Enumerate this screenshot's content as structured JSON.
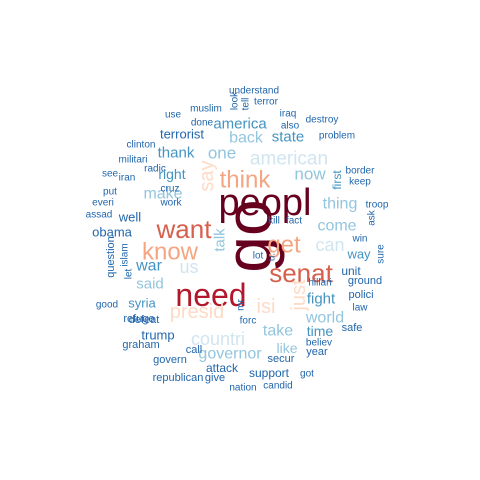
{
  "palette": {
    "darkest": "#67001f",
    "dark_red": "#b2182b",
    "salmon": "#d6604d",
    "peach": "#f4a582",
    "light_peach": "#fddbc7",
    "pale_blue": "#d1e5f0",
    "light_blue": "#92c5de",
    "mid_blue": "#4393c3",
    "dark_blue": "#2166ac",
    "navy": "#053061"
  },
  "words": [
    {
      "text": "go",
      "color": "#67001f",
      "vertical": true
    },
    {
      "text": "peopl",
      "color": "#67001f",
      "vertical": false
    },
    {
      "text": "need",
      "color": "#b2182b",
      "vertical": false
    },
    {
      "text": "want",
      "color": "#d6604d",
      "vertical": false
    },
    {
      "text": "senat",
      "color": "#d6604d",
      "vertical": false
    },
    {
      "text": "think",
      "color": "#f4a582",
      "vertical": false
    },
    {
      "text": "get",
      "color": "#f4a582",
      "vertical": false
    },
    {
      "text": "know",
      "color": "#f4a582",
      "vertical": false
    },
    {
      "text": "presid",
      "color": "#fddbc7",
      "vertical": false
    },
    {
      "text": "isi",
      "color": "#fddbc7",
      "vertical": false
    },
    {
      "text": "just",
      "color": "#fddbc7",
      "vertical": true
    },
    {
      "text": "say",
      "color": "#fddbc7",
      "vertical": true
    },
    {
      "text": "american",
      "color": "#d1e5f0",
      "vertical": false
    },
    {
      "text": "countri",
      "color": "#d1e5f0",
      "vertical": false
    },
    {
      "text": "can",
      "color": "#d1e5f0",
      "vertical": false
    },
    {
      "text": "us",
      "color": "#d1e5f0",
      "vertical": false
    },
    {
      "text": "one",
      "color": "#92c5de",
      "vertical": false
    },
    {
      "text": "now",
      "color": "#92c5de",
      "vertical": false
    },
    {
      "text": "make",
      "color": "#92c5de",
      "vertical": false
    },
    {
      "text": "thing",
      "color": "#92c5de",
      "vertical": false
    },
    {
      "text": "come",
      "color": "#92c5de",
      "vertical": false
    },
    {
      "text": "talk",
      "color": "#92c5de",
      "vertical": true
    },
    {
      "text": "back",
      "color": "#92c5de",
      "vertical": false
    },
    {
      "text": "said",
      "color": "#92c5de",
      "vertical": false
    },
    {
      "text": "world",
      "color": "#92c5de",
      "vertical": false
    },
    {
      "text": "take",
      "color": "#92c5de",
      "vertical": false
    },
    {
      "text": "governor",
      "color": "#92c5de",
      "vertical": false
    },
    {
      "text": "like",
      "color": "#92c5de",
      "vertical": false
    },
    {
      "text": "america",
      "color": "#4393c3",
      "vertical": false
    },
    {
      "text": "state",
      "color": "#4393c3",
      "vertical": false
    },
    {
      "text": "thank",
      "color": "#4393c3",
      "vertical": false
    },
    {
      "text": "right",
      "color": "#4393c3",
      "vertical": false
    },
    {
      "text": "war",
      "color": "#4393c3",
      "vertical": false
    },
    {
      "text": "fight",
      "color": "#4393c3",
      "vertical": false
    },
    {
      "text": "time",
      "color": "#4393c3",
      "vertical": false
    },
    {
      "text": "way",
      "color": "#4393c3",
      "vertical": false
    },
    {
      "text": "first",
      "color": "#4393c3",
      "vertical": true
    },
    {
      "text": "syria",
      "color": "#4393c3",
      "vertical": false
    },
    {
      "text": "terrorist",
      "color": "#2166ac",
      "vertical": false
    },
    {
      "text": "well",
      "color": "#2166ac",
      "vertical": false
    },
    {
      "text": "obama",
      "color": "#2166ac",
      "vertical": false
    },
    {
      "text": "unit",
      "color": "#2166ac",
      "vertical": false
    },
    {
      "text": "trump",
      "color": "#2166ac",
      "vertical": false
    },
    {
      "text": "understand",
      "color": "#2166ac",
      "vertical": false
    },
    {
      "text": "muslim",
      "color": "#2166ac",
      "vertical": false
    },
    {
      "text": "look",
      "color": "#2166ac",
      "vertical": true
    },
    {
      "text": "tell",
      "color": "#2166ac",
      "vertical": true
    },
    {
      "text": "terror",
      "color": "#2166ac",
      "vertical": false
    },
    {
      "text": "use",
      "color": "#2166ac",
      "vertical": false
    },
    {
      "text": "done",
      "color": "#2166ac",
      "vertical": false
    },
    {
      "text": "iraq",
      "color": "#2166ac",
      "vertical": false
    },
    {
      "text": "destroy",
      "color": "#2166ac",
      "vertical": false
    },
    {
      "text": "also",
      "color": "#2166ac",
      "vertical": false
    },
    {
      "text": "problem",
      "color": "#2166ac",
      "vertical": false
    },
    {
      "text": "clinton",
      "color": "#2166ac",
      "vertical": false
    },
    {
      "text": "militari",
      "color": "#2166ac",
      "vertical": false
    },
    {
      "text": "radic",
      "color": "#2166ac",
      "vertical": false
    },
    {
      "text": "see",
      "color": "#2166ac",
      "vertical": false
    },
    {
      "text": "iran",
      "color": "#2166ac",
      "vertical": false
    },
    {
      "text": "cruz",
      "color": "#2166ac",
      "vertical": false
    },
    {
      "text": "put",
      "color": "#2166ac",
      "vertical": false
    },
    {
      "text": "everi",
      "color": "#2166ac",
      "vertical": false
    },
    {
      "text": "assad",
      "color": "#2166ac",
      "vertical": false
    },
    {
      "text": "work",
      "color": "#2166ac",
      "vertical": false
    },
    {
      "text": "border",
      "color": "#2166ac",
      "vertical": false
    },
    {
      "text": "keep",
      "color": "#2166ac",
      "vertical": false
    },
    {
      "text": "troop",
      "color": "#2166ac",
      "vertical": false
    },
    {
      "text": "kill",
      "color": "#2166ac",
      "vertical": false
    },
    {
      "text": "fact",
      "color": "#2166ac",
      "vertical": false
    },
    {
      "text": "ask",
      "color": "#2166ac",
      "vertical": true
    },
    {
      "text": "win",
      "color": "#2166ac",
      "vertical": false
    },
    {
      "text": "question",
      "color": "#2166ac",
      "vertical": true
    },
    {
      "text": "islam",
      "color": "#2166ac",
      "vertical": true
    },
    {
      "text": "let",
      "color": "#2166ac",
      "vertical": true
    },
    {
      "text": "lot",
      "color": "#2166ac",
      "vertical": false
    },
    {
      "text": "u.",
      "color": "#2166ac",
      "vertical": true
    },
    {
      "text": "hillari",
      "color": "#2166ac",
      "vertical": false
    },
    {
      "text": "ground",
      "color": "#2166ac",
      "vertical": false
    },
    {
      "text": "polici",
      "color": "#2166ac",
      "vertical": false
    },
    {
      "text": "sure",
      "color": "#2166ac",
      "vertical": true
    },
    {
      "text": "good",
      "color": "#2166ac",
      "vertical": false
    },
    {
      "text": "defeat",
      "color": "#2166ac",
      "vertical": false
    },
    {
      "text": "law",
      "color": "#2166ac",
      "vertical": false
    },
    {
      "text": "refuge",
      "color": "#2166ac",
      "vertical": false
    },
    {
      "text": "mr",
      "color": "#2166ac",
      "vertical": true
    },
    {
      "text": "forc",
      "color": "#2166ac",
      "vertical": false
    },
    {
      "text": "safe",
      "color": "#2166ac",
      "vertical": false
    },
    {
      "text": "graham",
      "color": "#2166ac",
      "vertical": false
    },
    {
      "text": "call",
      "color": "#2166ac",
      "vertical": false
    },
    {
      "text": "believ",
      "color": "#2166ac",
      "vertical": false
    },
    {
      "text": "year",
      "color": "#2166ac",
      "vertical": false
    },
    {
      "text": "govern",
      "color": "#2166ac",
      "vertical": false
    },
    {
      "text": "secur",
      "color": "#2166ac",
      "vertical": false
    },
    {
      "text": "attack",
      "color": "#2166ac",
      "vertical": false
    },
    {
      "text": "support",
      "color": "#2166ac",
      "vertical": false
    },
    {
      "text": "republican",
      "color": "#2166ac",
      "vertical": false
    },
    {
      "text": "give",
      "color": "#2166ac",
      "vertical": false
    },
    {
      "text": "got",
      "color": "#2166ac",
      "vertical": false
    },
    {
      "text": "nation",
      "color": "#2166ac",
      "vertical": false
    },
    {
      "text": "candid",
      "color": "#2166ac",
      "vertical": false
    }
  ]
}
